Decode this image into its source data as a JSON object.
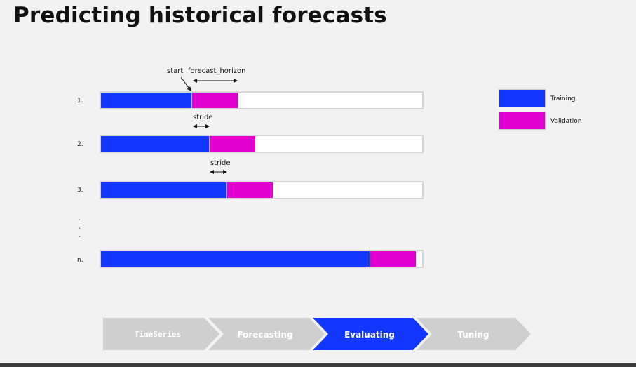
{
  "title": "Predicting historical forecasts",
  "annotations": {
    "start": "start",
    "forecast_horizon": "forecast_horizon",
    "stride_1": "stride",
    "stride_2": "stride"
  },
  "rows": [
    {
      "label": "1.",
      "training_fraction": 0.284,
      "validation_fraction": 0.142
    },
    {
      "label": "2.",
      "training_fraction": 0.338,
      "validation_fraction": 0.142
    },
    {
      "label": "3.",
      "training_fraction": 0.392,
      "validation_fraction": 0.142
    },
    {
      "label": "n.",
      "training_fraction": 0.839,
      "validation_fraction": 0.142
    }
  ],
  "ellipsis": ".\n.\n.",
  "legend": [
    {
      "label": "Training",
      "color": "#1437ff"
    },
    {
      "label": "Validation",
      "color": "#e000d0"
    }
  ],
  "pipeline": [
    {
      "label": "TimeSeries",
      "active": false
    },
    {
      "label": "Forecasting",
      "active": false
    },
    {
      "label": "Evaluating",
      "active": true
    },
    {
      "label": "Tuning",
      "active": false
    }
  ],
  "colors": {
    "training": "#1437ff",
    "validation": "#e000d0",
    "pipeline_active": "#1437ff",
    "pipeline_inactive": "#cfcfcf"
  }
}
